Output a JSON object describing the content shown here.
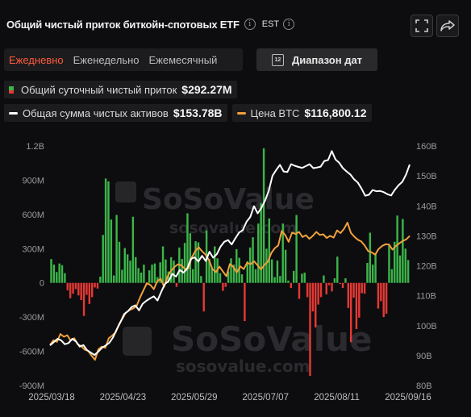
{
  "header": {
    "title": "Общий чистый приток биткойн-спотовых ETF",
    "info_glyph": "i",
    "timezone": "EST"
  },
  "toolbar": {
    "periods": [
      "Ежедневно",
      "Еженедельно",
      "Ежемесячный"
    ],
    "active_period": "Ежедневно",
    "date_range_label": "Диапазон дат",
    "calendar_day": "12"
  },
  "legend": {
    "flow_label": "Общий суточный чистый приток",
    "flow_value": "$292.27M",
    "assets_label": "Общая сумма чистых активов",
    "assets_value": "$153.78B",
    "btc_label": "Цена BTC",
    "btc_value": "$116,800.12"
  },
  "watermark": {
    "brand": "SoSoValue",
    "site": "sosovalue.com"
  },
  "icons": [
    "info-icon",
    "fullscreen-icon",
    "share-icon",
    "calendar-icon"
  ],
  "colors": {
    "inflow": "#3cb54a",
    "outflow": "#e53935",
    "assets_line": "#ffffff",
    "btc_line": "#f2a03d",
    "active_tab": "#ff5a3c"
  },
  "chart_data": {
    "type": "bar",
    "x_ticks": [
      "2025/03/18",
      "2025/04/23",
      "2025/05/29",
      "2025/07/07",
      "2025/08/11",
      "2025/09/16"
    ],
    "left_axis": {
      "ticks": [
        "1.2B",
        "900M",
        "600M",
        "300M",
        "0",
        "-300M",
        "-600M",
        "-900M"
      ],
      "range": [
        -900,
        1200
      ],
      "unit": "M"
    },
    "right_axis": {
      "ticks": [
        "160B",
        "150B",
        "140B",
        "130B",
        "120B",
        "110B",
        "100B",
        "90B",
        "80B"
      ],
      "range": [
        80,
        160
      ],
      "unit": "B"
    },
    "grid": false,
    "series": [
      {
        "name": "Общий суточный чистый приток",
        "type": "bar",
        "axis": "left",
        "values": [
          209,
          160,
          95,
          170,
          155,
          85,
          -65,
          -135,
          -95,
          -55,
          -110,
          -150,
          -290,
          -105,
          -185,
          -125,
          -40,
          -50,
          55,
          420,
          915,
          890,
          555,
          65,
          595,
          360,
          115,
          305,
          250,
          195,
          580,
          225,
          130,
          90,
          160,
          -20,
          110,
          160,
          170,
          50,
          180,
          320,
          205,
          100,
          225,
          195,
          -35,
          310,
          210,
          350,
          610,
          435,
          120,
          365,
          355,
          60,
          -250,
          460,
          210,
          130,
          320,
          215,
          85,
          -70,
          -35,
          100,
          215,
          160,
          295,
          220,
          75,
          -335,
          190,
          310,
          400,
          120,
          520,
          700,
          1180,
          300,
          565,
          205,
          50,
          195,
          60,
          520,
          290,
          20,
          -45,
          105,
          595,
          -140,
          80,
          90,
          -125,
          -815,
          -250,
          -390,
          -190,
          -125,
          65,
          -100,
          -20,
          -75,
          40,
          230,
          -10,
          -45,
          40,
          -220,
          -520,
          -130,
          -405,
          -305,
          -90,
          -95,
          175,
          440,
          160,
          260,
          -225,
          -160,
          -300,
          -270,
          330,
          120,
          360,
          590,
          240,
          560,
          300,
          200
        ]
      },
      {
        "name": "Общая сумма чистых активов",
        "type": "line",
        "axis": "right",
        "values": [
          93.4,
          94.5,
          95.6,
          95.1,
          93.8,
          94.2,
          95.6,
          94.7,
          93.0,
          93.5,
          91.8,
          91.0,
          90.2,
          91.3,
          92.6,
          93.4,
          94.3,
          96.1,
          98.8,
          101.2,
          103.9,
          104.8,
          106.2,
          106.8,
          105.1,
          107.3,
          108.3,
          109.1,
          109.8,
          108.4,
          111.3,
          113.9,
          114.9,
          117.3,
          116.4,
          118.6,
          117.7,
          119.0,
          122.3,
          122.8,
          121.4,
          123.3,
          121.6,
          124.7,
          122.7,
          123.9,
          126.4,
          128.0,
          128.6,
          127.1,
          129.2,
          131.1,
          131.9,
          134.7,
          136.3,
          139.9,
          137.5,
          139.3,
          141.8,
          145.1,
          150.1,
          152.0,
          153.7,
          151.5,
          151.3,
          153.9,
          153.4,
          153.0,
          152.7,
          153.3,
          153.9,
          152.6,
          152.8,
          153.1,
          155.0,
          155.3,
          158.3,
          155.5,
          154.4,
          152.6,
          151.5,
          150.5,
          148.9,
          147.8,
          145.8,
          143.4,
          143.7,
          145.3,
          144.9,
          145.0,
          144.6,
          143.9,
          143.5,
          145.4,
          146.9,
          148.0,
          150.4,
          153.8
        ]
      },
      {
        "name": "Цена BTC",
        "type": "line",
        "axis": "right",
        "values": [
          93.6,
          95.1,
          94.6,
          97.2,
          96.3,
          96.8,
          95.0,
          95.8,
          93.8,
          93.2,
          92.0,
          91.6,
          90.0,
          88.6,
          92.1,
          93.0,
          92.6,
          95.8,
          96.7,
          97.8,
          100.6,
          102.5,
          104.4,
          105.2,
          105.7,
          106.5,
          109.3,
          111.8,
          114.2,
          113.6,
          112.2,
          114.8,
          115.7,
          113.0,
          116.5,
          118.3,
          119.6,
          120.5,
          120.1,
          118.9,
          119.2,
          122.8,
          124.9,
          126.2,
          124.8,
          123.7,
          121.8,
          118.8,
          117.9,
          119.7,
          118.1,
          116.5,
          120.6,
          119.6,
          117.8,
          119.8,
          118.9,
          121.0,
          120.5,
          121.5,
          120.2,
          118.8,
          120.3,
          121.4,
          124.3,
          125.9,
          126.8,
          131.6,
          130.3,
          128.0,
          131.1,
          130.6,
          131.3,
          129.6,
          130.2,
          129.0,
          130.0,
          131.3,
          130.3,
          130.5,
          129.3,
          130.0,
          129.4,
          131.8,
          130.9,
          132.3,
          134.4,
          131.0,
          129.7,
          128.7,
          128.1,
          126.7,
          124.9,
          124.5,
          123.7,
          125.6,
          126.6,
          127.2,
          127.1,
          125.4,
          126.6,
          127.5,
          128.3,
          128.8,
          130.0
        ]
      }
    ]
  }
}
